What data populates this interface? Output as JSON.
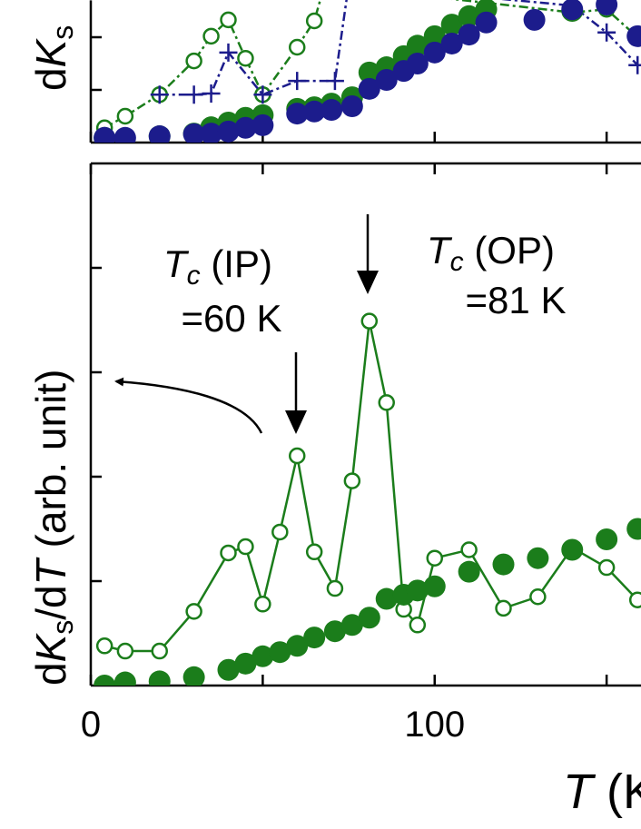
{
  "chart_data": [
    {
      "type": "line",
      "ylabel_parts": [
        "d",
        "K",
        "s"
      ],
      "xlim": [
        0,
        160
      ],
      "ylim": [
        0,
        2.7
      ],
      "xticks": [
        0,
        50,
        100,
        150
      ],
      "yticks": [
        1,
        2
      ],
      "tick_labels": {
        "x": false,
        "y": false
      },
      "series": [
        {
          "color": "#1b7d1b",
          "marker": "open-circle",
          "linestyle": "dashdot",
          "x": [
            4,
            10,
            20,
            30,
            35,
            40,
            45,
            50,
            60,
            65,
            68,
            140,
            150,
            159
          ],
          "values": [
            0.28,
            0.5,
            0.91,
            1.55,
            2.02,
            2.33,
            1.6,
            0.91,
            1.81,
            2.31,
            3.0,
            2.47,
            2.53,
            2.0
          ]
        },
        {
          "color": "#1c1c8c",
          "marker": "plus",
          "linestyle": "dashdot",
          "x": [
            20,
            30,
            35,
            40,
            50,
            60,
            71,
            75,
            140,
            150,
            159
          ],
          "values": [
            0.91,
            0.91,
            0.93,
            1.71,
            0.91,
            1.17,
            1.17,
            3.0,
            2.6,
            2.09,
            1.47
          ]
        },
        {
          "color": "#1b7d1b",
          "marker": "filled-circle",
          "linestyle": "none",
          "x": [
            4,
            20,
            30,
            35,
            40,
            45,
            50,
            60,
            65,
            70,
            76,
            81,
            86,
            91,
            95,
            100,
            105,
            110,
            115,
            140
          ],
          "values": [
            0.09,
            0.12,
            0.17,
            0.29,
            0.38,
            0.47,
            0.52,
            0.64,
            0.67,
            0.74,
            0.86,
            1.33,
            1.43,
            1.64,
            1.84,
            2.02,
            2.24,
            2.4,
            2.53,
            2.5
          ]
        },
        {
          "color": "#1c1c8c",
          "marker": "filled-circle",
          "linestyle": "none",
          "x": [
            4,
            10,
            20,
            30,
            35,
            40,
            45,
            50,
            60,
            65,
            70,
            76,
            81,
            86,
            91,
            95,
            100,
            105,
            110,
            115,
            129,
            140,
            150,
            159
          ],
          "values": [
            0.09,
            0.09,
            0.12,
            0.16,
            0.17,
            0.21,
            0.28,
            0.33,
            0.55,
            0.59,
            0.62,
            0.69,
            1.02,
            1.19,
            1.36,
            1.5,
            1.71,
            1.88,
            2.05,
            2.28,
            2.33,
            2.53,
            2.62,
            2.02
          ]
        }
      ]
    },
    {
      "type": "line",
      "ylabel_parts": [
        "d",
        "K",
        "s",
        "/d",
        "T",
        "  (arb. unit)"
      ],
      "xlabel_parts": [
        "T",
        " (K"
      ],
      "xlim": [
        0,
        160
      ],
      "ylim": [
        0,
        5
      ],
      "xticks": [
        0,
        100
      ],
      "xminorticks": [
        50,
        150
      ],
      "yticks": [
        1,
        2,
        3,
        4
      ],
      "tick_labels": {
        "x": true,
        "y": false
      },
      "annotations": [
        {
          "parts": [
            "T",
            "c",
            " (IP)"
          ],
          "line2": "=60 K"
        },
        {
          "parts": [
            "T",
            "c",
            " (OP)"
          ],
          "line2": "=81 K"
        }
      ],
      "series": [
        {
          "color": "#1b7d1b",
          "marker": "open-circle",
          "linestyle": "solid",
          "x": [
            4,
            10,
            20,
            30,
            40,
            45,
            50,
            55,
            60,
            65,
            71,
            76,
            81,
            86,
            91,
            95,
            100,
            110,
            120,
            130,
            140,
            150,
            159
          ],
          "values": [
            0.38,
            0.33,
            0.33,
            0.71,
            1.27,
            1.33,
            0.78,
            1.47,
            2.2,
            1.28,
            0.93,
            1.96,
            3.49,
            2.71,
            0.73,
            0.58,
            1.22,
            1.3,
            0.74,
            0.85,
            1.32,
            1.13,
            0.82
          ]
        },
        {
          "color": "#1b7d1b",
          "marker": "filled-circle",
          "linestyle": "none",
          "x": [
            4,
            10,
            20,
            30,
            40,
            45,
            50,
            55,
            60,
            65,
            71,
            76,
            81,
            86,
            91,
            95,
            100,
            110,
            120,
            130,
            140,
            150,
            159
          ],
          "values": [
            0,
            0.03,
            0.04,
            0.08,
            0.15,
            0.21,
            0.28,
            0.32,
            0.38,
            0.46,
            0.52,
            0.58,
            0.65,
            0.83,
            0.87,
            0.91,
            0.95,
            1.09,
            1.16,
            1.22,
            1.3,
            1.4,
            1.5
          ]
        }
      ]
    }
  ]
}
